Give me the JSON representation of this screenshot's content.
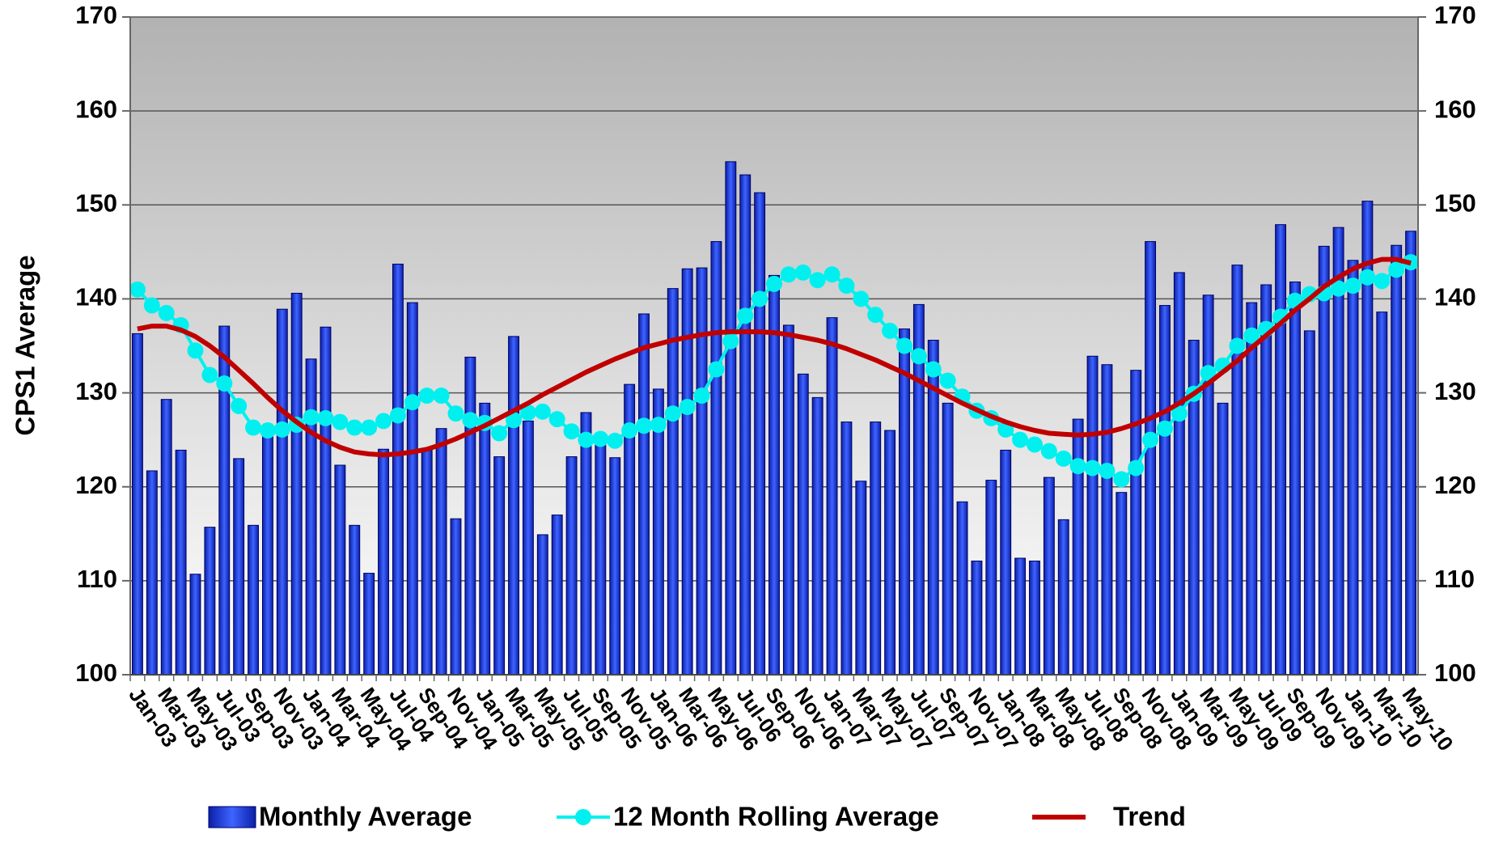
{
  "chart_data": {
    "type": "bar",
    "y_label": "CPS1 Average",
    "categories": [
      "Jan-03",
      null,
      "Mar-03",
      null,
      "May-03",
      null,
      "Jul-03",
      null,
      "Sep-03",
      null,
      "Nov-03",
      null,
      "Jan-04",
      null,
      "Mar-04",
      null,
      "May-04",
      null,
      "Jul-04",
      null,
      "Sep-04",
      null,
      "Nov-04",
      null,
      "Jan-05",
      null,
      "Mar-05",
      null,
      "May-05",
      null,
      "Jul-05",
      null,
      "Sep-05",
      null,
      "Nov-05",
      null,
      "Jan-06",
      null,
      "Mar-06",
      null,
      "May-06",
      null,
      "Jul-06",
      null,
      "Sep-06",
      null,
      "Nov-06",
      null,
      "Jan-07",
      null,
      "Mar-07",
      null,
      "May-07",
      null,
      "Jul-07",
      null,
      "Sep-07",
      null,
      "Nov-07",
      null,
      "Jan-08",
      null,
      "Mar-08",
      null,
      "May-08",
      null,
      "Jul-08",
      null,
      "Sep-08",
      null,
      "Nov-08",
      null,
      "Jan-09",
      null,
      "Mar-09",
      null,
      "May-09",
      null,
      "Jul-09",
      null,
      "Sep-09",
      null,
      "Nov-09",
      null,
      "Jan-10",
      null,
      "Mar-10",
      null,
      "May-10"
    ],
    "series": [
      {
        "name": "Monthly Average",
        "type": "bar",
        "color": "#2244dd",
        "values": [
          136.3,
          121.7,
          129.3,
          123.9,
          110.7,
          115.7,
          137.1,
          123.0,
          115.9,
          126.5,
          138.9,
          140.6,
          133.6,
          137.0,
          122.3,
          115.9,
          110.8,
          124.0,
          143.7,
          139.6,
          123.9,
          126.2,
          116.6,
          133.8,
          128.9,
          123.2,
          136.0,
          127.0,
          114.9,
          117.0,
          123.2,
          127.9,
          125.0,
          123.1,
          130.9,
          138.4,
          130.4,
          141.1,
          143.2,
          143.3,
          146.1,
          154.6,
          153.2,
          151.3,
          142.5,
          137.2,
          132.0,
          129.5,
          138.0,
          126.9,
          120.6,
          126.9,
          126.0,
          136.8,
          139.4,
          135.6,
          128.9,
          118.4,
          112.1,
          120.7,
          123.9,
          112.4,
          112.1,
          121.0,
          116.5,
          127.2,
          133.9,
          133.0,
          119.4,
          132.4,
          146.1,
          139.3,
          142.8,
          135.6,
          140.4,
          128.9,
          143.6,
          139.6,
          141.5,
          147.9,
          141.8,
          136.6,
          145.6,
          147.6,
          144.1,
          150.4,
          138.6,
          145.7,
          147.2
        ]
      },
      {
        "name": "12 Month Rolling Average",
        "type": "line",
        "marker": "circle",
        "color": "#00f0f0",
        "values": [
          141.0,
          139.3,
          138.5,
          137.2,
          134.5,
          131.9,
          131.0,
          128.6,
          126.3,
          126.0,
          126.1,
          126.6,
          127.4,
          127.3,
          126.9,
          126.3,
          126.3,
          127.0,
          127.6,
          129.0,
          129.7,
          129.7,
          127.8,
          127.1,
          126.8,
          125.7,
          127.1,
          127.9,
          128.0,
          127.2,
          125.9,
          125.0,
          125.1,
          124.9,
          126.0,
          126.5,
          126.6,
          127.8,
          128.5,
          129.7,
          132.5,
          135.5,
          138.2,
          140.0,
          141.6,
          142.6,
          142.8,
          142.0,
          142.6,
          141.4,
          140.0,
          138.3,
          136.6,
          135.0,
          133.9,
          132.5,
          131.3,
          129.6,
          128.1,
          127.3,
          126.1,
          125.0,
          124.5,
          123.8,
          123.0,
          122.2,
          122.0,
          121.7,
          120.8,
          122.0,
          125.0,
          126.2,
          127.8,
          129.9,
          132.1,
          132.9,
          135.0,
          136.1,
          136.8,
          138.1,
          139.8,
          140.5,
          140.6,
          141.1,
          141.4,
          142.3,
          141.9,
          143.1,
          143.9
        ]
      },
      {
        "name": "Trend",
        "type": "line",
        "color": "#c00000",
        "values": [
          136.8,
          137.1,
          137.1,
          136.7,
          136.0,
          135.0,
          133.8,
          132.4,
          131.0,
          129.5,
          128.1,
          126.9,
          125.8,
          124.9,
          124.2,
          123.7,
          123.5,
          123.4,
          123.5,
          123.7,
          124.0,
          124.5,
          125.1,
          125.8,
          126.5,
          127.3,
          128.1,
          128.9,
          129.8,
          130.6,
          131.4,
          132.2,
          132.9,
          133.6,
          134.2,
          134.8,
          135.2,
          135.6,
          135.9,
          136.2,
          136.4,
          136.5,
          136.5,
          136.5,
          136.4,
          136.2,
          135.9,
          135.6,
          135.2,
          134.7,
          134.1,
          133.5,
          132.8,
          132.1,
          131.3,
          130.5,
          129.7,
          128.9,
          128.2,
          127.5,
          126.9,
          126.4,
          126.0,
          125.7,
          125.6,
          125.5,
          125.6,
          125.8,
          126.2,
          126.7,
          127.3,
          128.0,
          128.9,
          129.9,
          131.0,
          132.2,
          133.4,
          134.8,
          136.1,
          137.4,
          138.8,
          140.0,
          141.3,
          142.3,
          143.2,
          143.8,
          144.2,
          144.2,
          143.8
        ]
      }
    ],
    "ylim": [
      100,
      170
    ],
    "yticks": [
      100,
      110,
      120,
      130,
      140,
      150,
      160,
      170
    ],
    "y2lim": [
      100,
      170
    ],
    "y2ticks": [
      100,
      110,
      120,
      130,
      140,
      150,
      160,
      170
    ],
    "grid": true,
    "legend": "bottom"
  }
}
